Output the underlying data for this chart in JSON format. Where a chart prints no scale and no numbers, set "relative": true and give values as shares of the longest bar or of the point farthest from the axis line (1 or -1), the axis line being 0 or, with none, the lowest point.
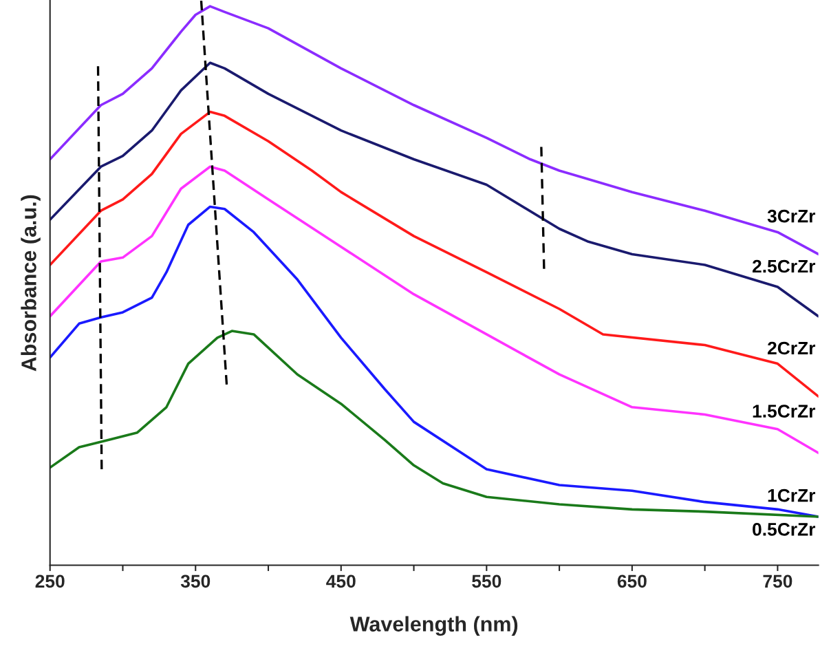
{
  "chart_data": {
    "type": "line",
    "xlabel": "Wavelength (nm)",
    "ylabel": "Absorbance (a.u.)",
    "relative": true,
    "xlim": [
      250,
      778
    ],
    "xticks": [
      250,
      {
        "value": 300,
        "label": null
      },
      350,
      {
        "value": 400,
        "label": null
      },
      450,
      {
        "value": 500,
        "label": null
      },
      550,
      {
        "value": 600,
        "label": null
      },
      650,
      {
        "value": 700,
        "label": null
      },
      750
    ],
    "grid": false,
    "legend": false,
    "line_style": "solid",
    "marker": "none",
    "series": [
      {
        "name": "3CrZr",
        "color": "#8b2cff",
        "x": [
          250,
          285,
          300,
          320,
          340,
          350,
          360,
          370,
          400,
          450,
          500,
          550,
          580,
          600,
          650,
          700,
          750,
          778
        ],
        "values": [
          0.719,
          0.815,
          0.835,
          0.88,
          0.945,
          0.975,
          0.99,
          0.98,
          0.951,
          0.88,
          0.815,
          0.757,
          0.719,
          0.699,
          0.661,
          0.628,
          0.59,
          0.551
        ]
      },
      {
        "name": "2.5CrZr",
        "color": "#1a1a6e",
        "x": [
          250,
          285,
          300,
          320,
          340,
          360,
          370,
          400,
          450,
          500,
          550,
          600,
          620,
          650,
          700,
          750,
          778
        ],
        "values": [
          0.612,
          0.706,
          0.725,
          0.77,
          0.841,
          0.89,
          0.88,
          0.835,
          0.77,
          0.719,
          0.674,
          0.596,
          0.573,
          0.551,
          0.532,
          0.493,
          0.441
        ]
      },
      {
        "name": "2CrZr",
        "color": "#ff1a1a",
        "x": [
          250,
          285,
          300,
          320,
          340,
          360,
          370,
          400,
          430,
          450,
          500,
          550,
          600,
          630,
          700,
          750,
          778
        ],
        "values": [
          0.532,
          0.628,
          0.648,
          0.693,
          0.764,
          0.803,
          0.796,
          0.751,
          0.699,
          0.661,
          0.583,
          0.519,
          0.454,
          0.409,
          0.39,
          0.357,
          0.299
        ]
      },
      {
        "name": "1.5CrZr",
        "color": "#ff33ff",
        "x": [
          250,
          285,
          300,
          320,
          340,
          360,
          370,
          400,
          450,
          500,
          550,
          600,
          650,
          700,
          750,
          778
        ],
        "values": [
          0.441,
          0.538,
          0.545,
          0.583,
          0.667,
          0.706,
          0.699,
          0.648,
          0.564,
          0.48,
          0.409,
          0.338,
          0.28,
          0.267,
          0.241,
          0.199
        ]
      },
      {
        "name": "1CrZr",
        "color": "#1a1aff",
        "x": [
          250,
          270,
          285,
          300,
          320,
          330,
          345,
          360,
          370,
          390,
          420,
          450,
          480,
          500,
          550,
          600,
          650,
          700,
          750,
          778
        ],
        "values": [
          0.368,
          0.428,
          0.439,
          0.448,
          0.474,
          0.519,
          0.603,
          0.635,
          0.631,
          0.59,
          0.506,
          0.403,
          0.312,
          0.254,
          0.17,
          0.142,
          0.132,
          0.112,
          0.099,
          0.086
        ]
      },
      {
        "name": "0.5CrZr",
        "color": "#1a7a1a",
        "x": [
          250,
          270,
          290,
          310,
          330,
          345,
          365,
          375,
          390,
          420,
          450,
          480,
          500,
          520,
          550,
          600,
          650,
          700,
          778
        ],
        "values": [
          0.173,
          0.209,
          0.222,
          0.235,
          0.28,
          0.357,
          0.403,
          0.415,
          0.409,
          0.338,
          0.286,
          0.222,
          0.177,
          0.145,
          0.121,
          0.108,
          0.099,
          0.095,
          0.086
        ]
      },
      {
        "color": "#000000",
        "line_style": "dashed",
        "x": [
          283,
          285.5
        ],
        "values": [
          0.884,
          0.17
        ]
      },
      {
        "color": "#000000",
        "line_style": "dashed",
        "x": [
          353.9,
          371.4
        ],
        "values": [
          1.0,
          0.32
        ]
      },
      {
        "color": "#000000",
        "line_style": "dashed",
        "x": [
          587.6,
          589.5
        ],
        "values": [
          0.741,
          0.525
        ]
      }
    ]
  }
}
